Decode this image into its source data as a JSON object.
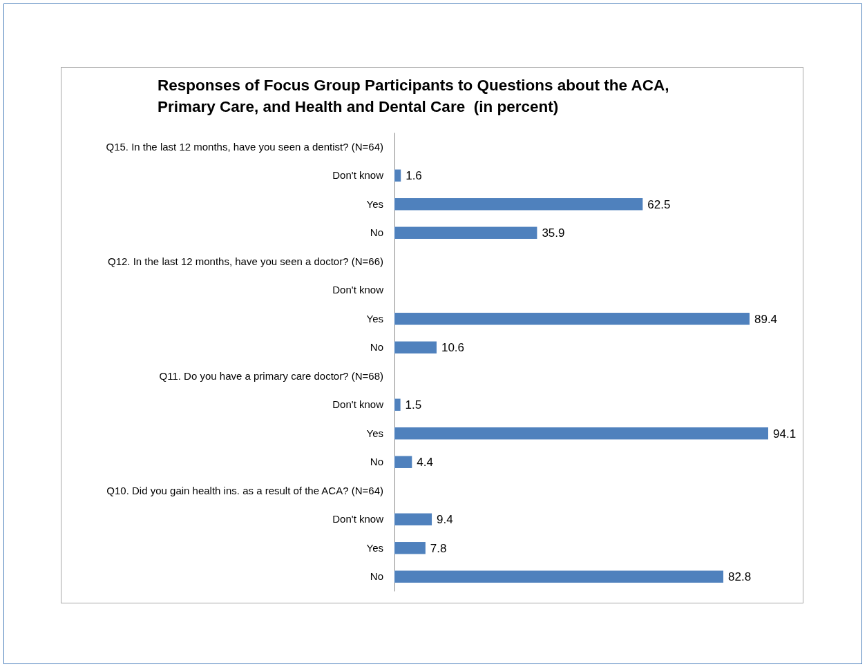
{
  "chart_data": {
    "type": "bar",
    "orientation": "horizontal",
    "title": "Responses of Focus Group Participants to Questions about the ACA, Primary Care, and Health and Dental Care  (in percent)",
    "categories": [
      "Q15. In the last 12 months, have you seen a dentist? (N=64)",
      "Don't know",
      "Yes",
      "No",
      "Q12. In the last 12 months, have you seen a doctor? (N=66)",
      "Don't know",
      "Yes",
      "No",
      "Q11. Do you have a primary care doctor? (N=68)",
      "Don't know",
      "Yes",
      "No",
      "Q10. Did you gain health ins. as a result of the ACA? (N=64)",
      "Don't know",
      "Yes",
      "No"
    ],
    "values": [
      null,
      1.6,
      62.5,
      35.9,
      null,
      null,
      89.4,
      10.6,
      null,
      1.5,
      94.1,
      4.4,
      null,
      9.4,
      7.8,
      82.8
    ],
    "color": "#4f81bd",
    "data_labels": true
  }
}
